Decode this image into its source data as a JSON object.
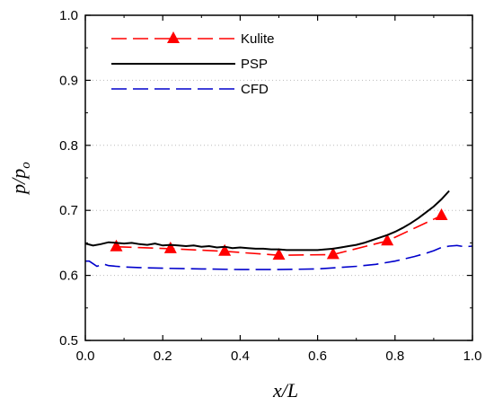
{
  "chart_data": {
    "type": "line",
    "xlabel": "x/L",
    "ylabel_main": "p/p",
    "ylabel_sub": "o",
    "xlim": [
      0.0,
      1.0
    ],
    "ylim": [
      0.5,
      1.0
    ],
    "xticks": [
      "0.0",
      "0.2",
      "0.4",
      "0.6",
      "0.8",
      "1.0"
    ],
    "yticks": [
      "0.5",
      "0.6",
      "0.7",
      "0.8",
      "0.9",
      "1.0"
    ],
    "grid": "dotted horizontal",
    "legend_position": "top-left",
    "series": [
      {
        "name": "Kulite",
        "style": "dashed-markers",
        "color": "#ff0000",
        "marker": "triangle",
        "x": [
          0.08,
          0.22,
          0.36,
          0.5,
          0.64,
          0.78,
          0.92
        ],
        "y": [
          0.644,
          0.641,
          0.637,
          0.631,
          0.632,
          0.653,
          0.692
        ]
      },
      {
        "name": "PSP",
        "style": "solid",
        "color": "#000000",
        "x": [
          0.0,
          0.02,
          0.04,
          0.06,
          0.08,
          0.1,
          0.12,
          0.14,
          0.16,
          0.18,
          0.2,
          0.22,
          0.24,
          0.26,
          0.28,
          0.3,
          0.32,
          0.34,
          0.36,
          0.38,
          0.4,
          0.42,
          0.44,
          0.46,
          0.48,
          0.5,
          0.52,
          0.54,
          0.56,
          0.58,
          0.6,
          0.62,
          0.64,
          0.66,
          0.68,
          0.7,
          0.72,
          0.74,
          0.76,
          0.78,
          0.8,
          0.82,
          0.84,
          0.86,
          0.88,
          0.9,
          0.92,
          0.94
        ],
        "y": [
          0.649,
          0.646,
          0.648,
          0.651,
          0.65,
          0.649,
          0.65,
          0.648,
          0.647,
          0.649,
          0.646,
          0.647,
          0.646,
          0.645,
          0.646,
          0.644,
          0.645,
          0.643,
          0.644,
          0.642,
          0.643,
          0.642,
          0.641,
          0.641,
          0.64,
          0.64,
          0.639,
          0.639,
          0.639,
          0.639,
          0.639,
          0.64,
          0.641,
          0.643,
          0.645,
          0.647,
          0.65,
          0.654,
          0.658,
          0.662,
          0.667,
          0.673,
          0.68,
          0.688,
          0.697,
          0.706,
          0.717,
          0.73
        ]
      },
      {
        "name": "CFD",
        "style": "dashed",
        "color": "#0000cc",
        "x": [
          0.0,
          0.01,
          0.02,
          0.03,
          0.04,
          0.05,
          0.06,
          0.08,
          0.1,
          0.14,
          0.2,
          0.3,
          0.4,
          0.5,
          0.6,
          0.65,
          0.7,
          0.75,
          0.8,
          0.85,
          0.88,
          0.9,
          0.92,
          0.94,
          0.96,
          0.98,
          1.0
        ],
        "y": [
          0.622,
          0.622,
          0.618,
          0.614,
          0.616,
          0.617,
          0.615,
          0.614,
          0.613,
          0.612,
          0.611,
          0.61,
          0.609,
          0.609,
          0.61,
          0.612,
          0.614,
          0.617,
          0.622,
          0.629,
          0.634,
          0.638,
          0.643,
          0.645,
          0.646,
          0.644,
          0.645
        ]
      }
    ]
  }
}
